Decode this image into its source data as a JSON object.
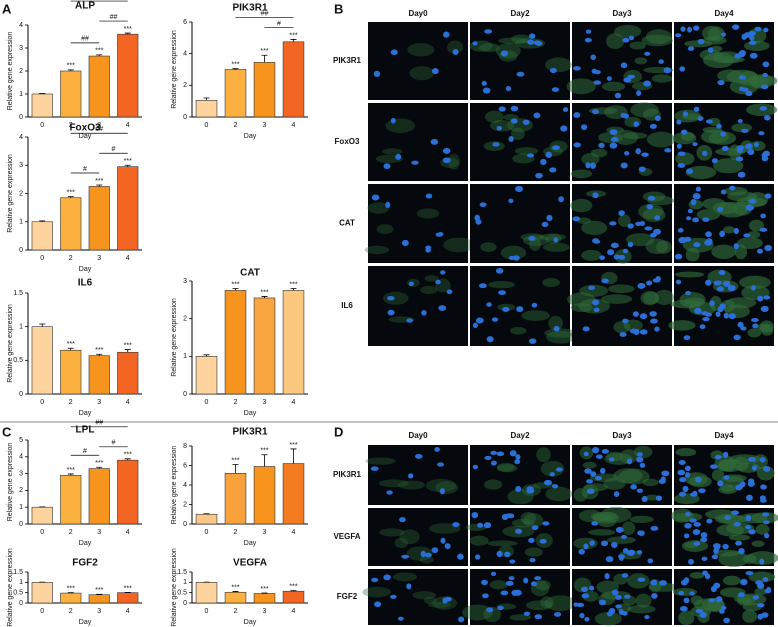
{
  "panel_letters": [
    "A",
    "B",
    "C",
    "D"
  ],
  "chart_data": [
    {
      "type": "bar",
      "title": "ALP",
      "categories": [
        "0",
        "2",
        "3",
        "4"
      ],
      "values": [
        1,
        2.0,
        2.65,
        3.6
      ],
      "errors": [
        0.02,
        0.05,
        0.05,
        0.05
      ],
      "significance": [
        null,
        "***",
        "***",
        "***"
      ],
      "comparisons": [
        {
          "label": "###",
          "from": "2",
          "to": "4"
        },
        {
          "label": "##",
          "from": "3",
          "to": "4"
        },
        {
          "label": "##",
          "from": "2",
          "to": "3"
        }
      ],
      "colors": [
        "#fdd49e",
        "#fbb040",
        "#f7941d",
        "#f26522"
      ],
      "ylim": [
        0,
        4
      ],
      "yticks": [
        0,
        1,
        2,
        3,
        4
      ],
      "xlabel": "Day",
      "ylabel": "Relative gene expression"
    },
    {
      "type": "bar",
      "title": "PIK3R1",
      "categories": [
        "0",
        "2",
        "3",
        "4"
      ],
      "values": [
        1.05,
        3.0,
        3.45,
        4.75
      ],
      "errors": [
        0.15,
        0.05,
        0.45,
        0.15
      ],
      "significance": [
        null,
        "***",
        "***",
        "***"
      ],
      "comparisons": [
        {
          "label": "##",
          "from": "2",
          "to": "4"
        },
        {
          "label": "#",
          "from": "3",
          "to": "4"
        }
      ],
      "colors": [
        "#fdd49e",
        "#fbb040",
        "#f7941d",
        "#f26522"
      ],
      "ylim": [
        0,
        6
      ],
      "yticks": [
        0,
        2,
        4,
        6
      ],
      "xlabel": "Day",
      "ylabel": "Relative gene expression"
    },
    {
      "type": "bar",
      "title": "FoxO3",
      "categories": [
        "0",
        "2",
        "3",
        "4"
      ],
      "values": [
        1.0,
        1.85,
        2.25,
        2.95
      ],
      "errors": [
        0.03,
        0.04,
        0.05,
        0.05
      ],
      "significance": [
        null,
        "***",
        "***",
        "***"
      ],
      "comparisons": [
        {
          "label": "##",
          "from": "2",
          "to": "4"
        },
        {
          "label": "#",
          "from": "2",
          "to": "3"
        },
        {
          "label": "#",
          "from": "3",
          "to": "4"
        }
      ],
      "colors": [
        "#fdd49e",
        "#fbb040",
        "#f7941d",
        "#f26522"
      ],
      "ylim": [
        0,
        4
      ],
      "yticks": [
        0,
        1,
        2,
        3,
        4
      ],
      "xlabel": "Day",
      "ylabel": "Relative gene expression"
    },
    {
      "type": "bar",
      "title": "IL6",
      "categories": [
        "0",
        "2",
        "3",
        "4"
      ],
      "values": [
        1.0,
        0.65,
        0.57,
        0.62
      ],
      "errors": [
        0.04,
        0.03,
        0.02,
        0.04
      ],
      "significance": [
        null,
        "***",
        "***",
        "***"
      ],
      "comparisons": [],
      "colors": [
        "#fdd49e",
        "#fbb040",
        "#f7941d",
        "#f26522"
      ],
      "ylim": [
        0,
        1.5
      ],
      "yticks": [
        0,
        0.5,
        1,
        1.5
      ],
      "xlabel": "Day",
      "ylabel": "Relative gene expression"
    },
    {
      "type": "bar",
      "title": "CAT",
      "categories": [
        "0",
        "2",
        "3",
        "4"
      ],
      "values": [
        1.0,
        2.75,
        2.55,
        2.75
      ],
      "errors": [
        0.04,
        0.05,
        0.04,
        0.05
      ],
      "significance": [
        null,
        "***",
        "***",
        "***"
      ],
      "comparisons": [],
      "colors": [
        "#fdd49e",
        "#f7941d",
        "#f9a541",
        "#fcc77e"
      ],
      "ylim": [
        0,
        3
      ],
      "yticks": [
        0,
        1,
        2,
        3
      ],
      "xlabel": "Day",
      "ylabel": "Relative gene expression"
    },
    {
      "type": "bar",
      "title": "LPL",
      "categories": [
        "0",
        "2",
        "3",
        "4"
      ],
      "values": [
        1.0,
        2.9,
        3.3,
        3.8
      ],
      "errors": [
        0.02,
        0.08,
        0.08,
        0.08
      ],
      "significance": [
        null,
        "***",
        "***",
        "***"
      ],
      "comparisons": [
        {
          "label": "##",
          "from": "2",
          "to": "4"
        },
        {
          "label": "#",
          "from": "2",
          "to": "3"
        },
        {
          "label": "#",
          "from": "3",
          "to": "4"
        }
      ],
      "colors": [
        "#fdd49e",
        "#fbb040",
        "#f7941d",
        "#f26522"
      ],
      "ylim": [
        0,
        5
      ],
      "yticks": [
        0,
        1,
        2,
        3,
        4,
        5
      ],
      "xlabel": "Day",
      "ylabel": "Relative gene expression"
    },
    {
      "type": "bar",
      "title": "PIK3R1",
      "categories": [
        "0",
        "2",
        "3",
        "4"
      ],
      "values": [
        1.0,
        5.2,
        5.9,
        6.2
      ],
      "errors": [
        0.05,
        0.9,
        1.2,
        1.5
      ],
      "significance": [
        null,
        "***",
        "***",
        "***"
      ],
      "comparisons": [],
      "colors": [
        "#fbc88a",
        "#f9a13a",
        "#f7941d",
        "#f47b20"
      ],
      "ylim": [
        0,
        8
      ],
      "yticks": [
        0,
        2,
        4,
        6,
        8
      ],
      "xlabel": "Day",
      "ylabel": "Relative gene expression"
    },
    {
      "type": "bar",
      "title": "FGF2",
      "categories": [
        "0",
        "2",
        "3",
        "4"
      ],
      "values": [
        1.0,
        0.48,
        0.4,
        0.5
      ],
      "errors": [
        0.01,
        0.02,
        0.02,
        0.01
      ],
      "significance": [
        null,
        "***",
        "***",
        "***"
      ],
      "comparisons": [],
      "colors": [
        "#fdd49e",
        "#fbb040",
        "#f7941d",
        "#f26522"
      ],
      "ylim": [
        0,
        1.5
      ],
      "yticks": [
        0,
        0.5,
        1,
        1.5
      ],
      "xlabel": "Day",
      "ylabel": "Relative gene expression"
    },
    {
      "type": "bar",
      "title": "VEGFA",
      "categories": [
        "0",
        "2",
        "3",
        "4"
      ],
      "values": [
        1.0,
        0.52,
        0.46,
        0.57
      ],
      "errors": [
        0.01,
        0.04,
        0.02,
        0.03
      ],
      "significance": [
        null,
        "***",
        "***",
        "***"
      ],
      "comparisons": [],
      "colors": [
        "#fdd49e",
        "#fbb040",
        "#f7941d",
        "#f26522"
      ],
      "ylim": [
        0,
        1.5
      ],
      "yticks": [
        0,
        0.5,
        1,
        1.5
      ],
      "xlabel": "Day",
      "ylabel": "Relative gene expression"
    }
  ],
  "image_grids": [
    {
      "columns": [
        "Day0",
        "Day2",
        "Day3",
        "Day4"
      ],
      "rows": [
        "PIK3R1",
        "FoxO3",
        "CAT",
        "IL6"
      ]
    },
    {
      "columns": [
        "Day0",
        "Day2",
        "Day3",
        "Day4"
      ],
      "rows": [
        "PIK3R1",
        "VEGFA",
        "FGF2"
      ]
    }
  ]
}
